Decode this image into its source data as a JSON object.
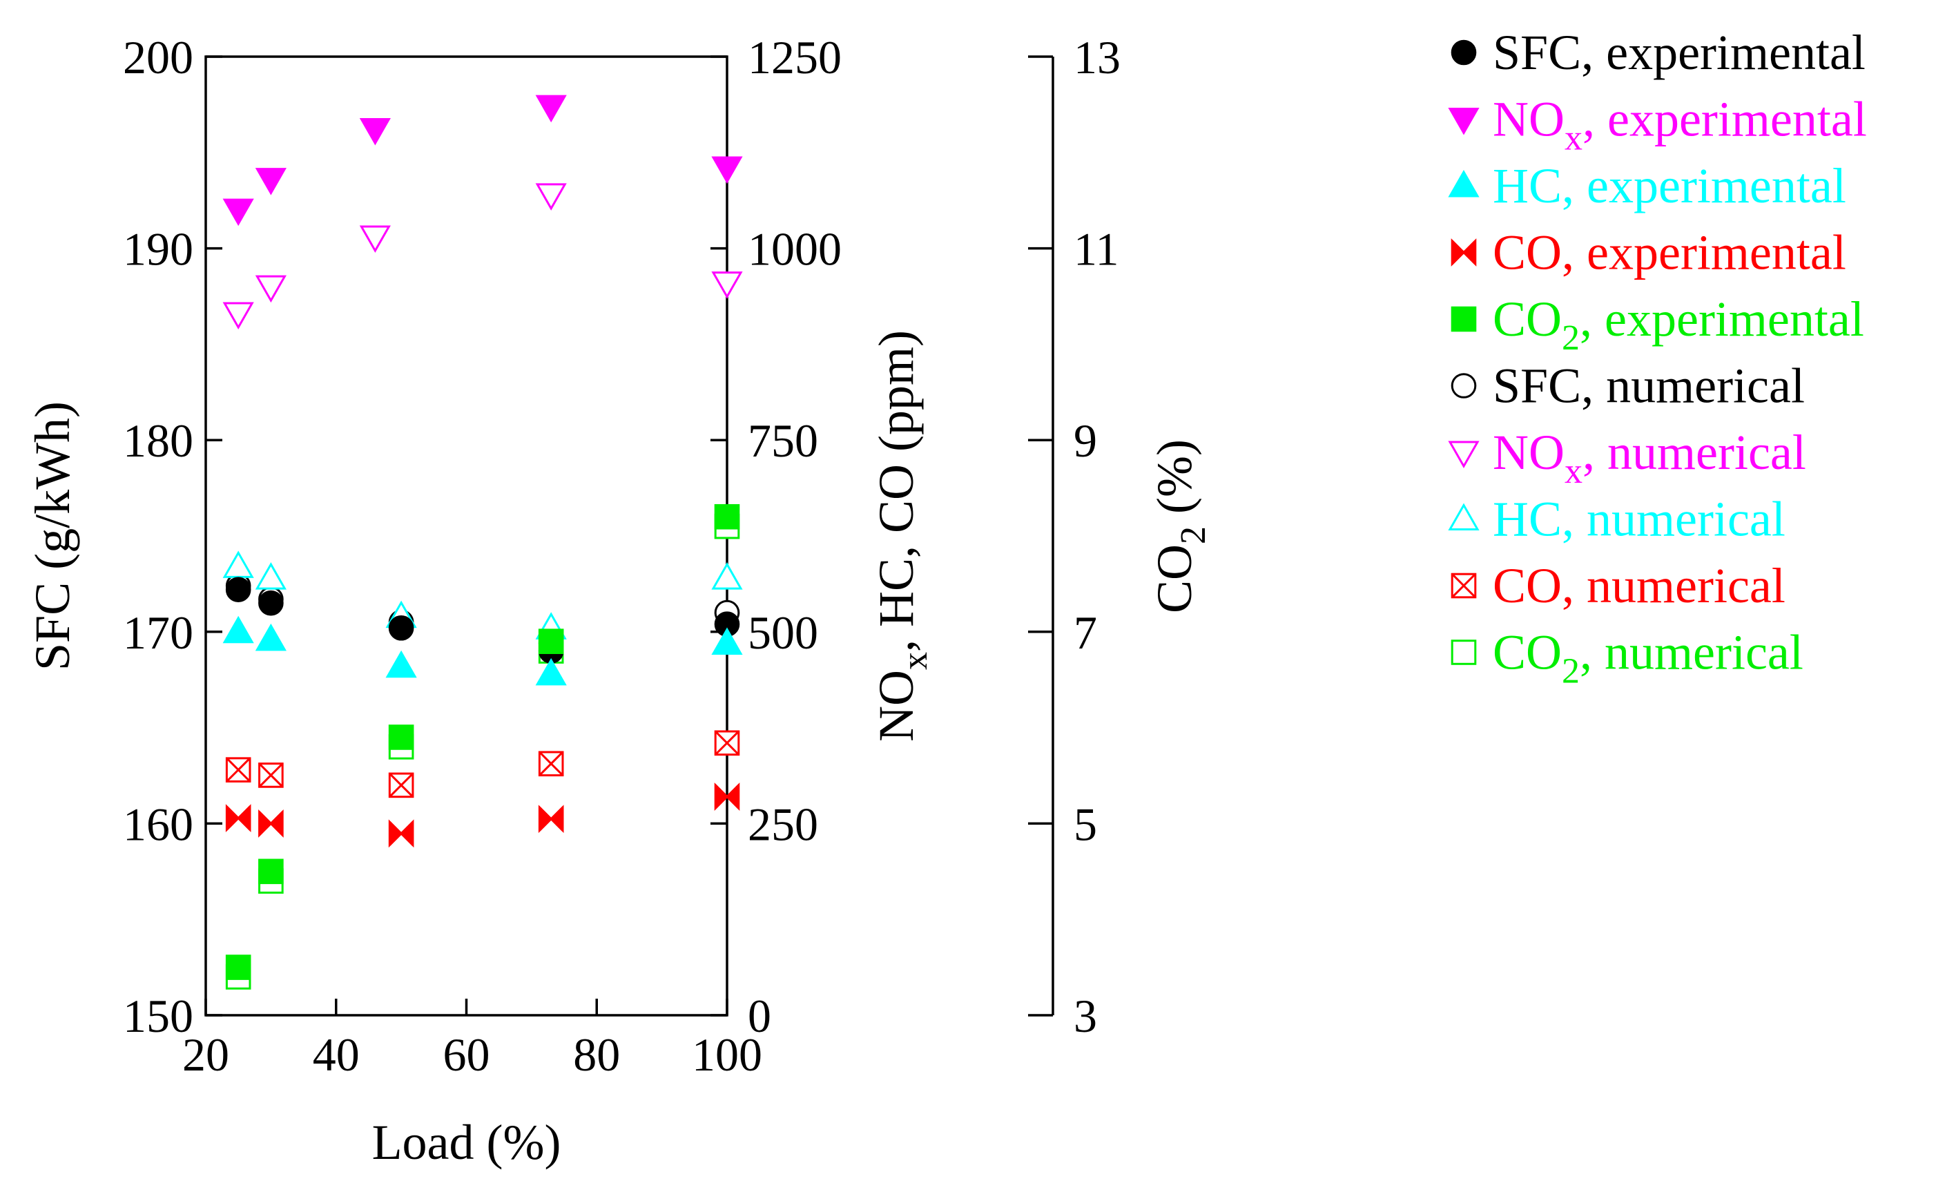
{
  "chart_data": {
    "type": "scatter",
    "x_axis": {
      "label": "Load (%)",
      "range": [
        20,
        100
      ],
      "ticks": [
        20,
        40,
        60,
        80,
        100
      ]
    },
    "y_axes": {
      "sfc": {
        "label_main": "SFC (g/kWh)",
        "range": [
          150,
          200
        ],
        "ticks": [
          150,
          160,
          170,
          180,
          190,
          200
        ]
      },
      "emissions": {
        "label_parts": [
          "NO",
          "x",
          ", HC, CO (ppm)"
        ],
        "range": [
          0,
          1250
        ],
        "ticks": [
          0,
          250,
          500,
          750,
          1000,
          1250
        ]
      },
      "co2": {
        "label_parts": [
          "CO",
          "2",
          " (%)"
        ],
        "range": [
          3,
          13
        ],
        "ticks": [
          3,
          5,
          7,
          9,
          11,
          13
        ]
      }
    },
    "series": [
      {
        "name": "SFC, experimental",
        "label_main": "SFC",
        "label_tail": ", experimental",
        "axis": "sfc",
        "marker": "circle",
        "filled": true,
        "color": "#000000",
        "x": [
          25,
          30,
          50,
          73,
          100
        ],
        "y": [
          172.2,
          171.5,
          170.2,
          169.0,
          170.4
        ]
      },
      {
        "name": "NOx, experimental",
        "label_main": "NO",
        "label_sub": "x",
        "label_tail": ", experimental",
        "axis": "emissions",
        "marker": "triangle-down",
        "filled": true,
        "color": "#ff00ff",
        "x": [
          25,
          30,
          46,
          73,
          100
        ],
        "y": [
          1050,
          1090,
          1155,
          1185,
          1105
        ]
      },
      {
        "name": "HC, experimental",
        "label_main": "HC",
        "label_tail": ", experimental",
        "axis": "emissions",
        "marker": "triangle-up",
        "filled": true,
        "color": "#00ffff",
        "x": [
          25,
          30,
          50,
          73,
          100
        ],
        "y": [
          500,
          490,
          455,
          445,
          485
        ]
      },
      {
        "name": "CO, experimental",
        "label_main": "CO",
        "label_tail": ", experimental",
        "axis": "emissions",
        "marker": "bowtie",
        "filled": true,
        "color": "#ff0000",
        "x": [
          25,
          30,
          50,
          73,
          100
        ],
        "y": [
          257,
          250,
          237,
          256,
          285
        ]
      },
      {
        "name": "CO2, experimental",
        "label_main": "CO",
        "label_sub": "2",
        "label_tail": ", experimental",
        "axis": "co2",
        "marker": "square",
        "filled": true,
        "color": "#00ee00",
        "x": [
          25,
          30,
          50,
          73,
          100
        ],
        "y": [
          3.5,
          4.5,
          5.9,
          6.9,
          8.2
        ]
      },
      {
        "name": "SFC, numerical",
        "label_main": "SFC",
        "label_tail": ", numerical",
        "axis": "sfc",
        "marker": "circle",
        "filled": false,
        "color": "#000000",
        "x": [
          25,
          30,
          50,
          73,
          100
        ],
        "y": [
          172.4,
          171.7,
          170.5,
          169.4,
          171.0
        ]
      },
      {
        "name": "NOx, numerical",
        "label_main": "NO",
        "label_sub": "x",
        "label_tail": ", numerical",
        "axis": "emissions",
        "marker": "triangle-down",
        "filled": false,
        "color": "#ff00ff",
        "x": [
          25,
          30,
          46,
          73,
          100
        ],
        "y": [
          915,
          950,
          1015,
          1070,
          955
        ]
      },
      {
        "name": "HC, numerical",
        "label_main": "HC",
        "label_tail": ", numerical",
        "axis": "emissions",
        "marker": "triangle-up",
        "filled": false,
        "color": "#00ffff",
        "x": [
          25,
          30,
          50,
          73,
          100
        ],
        "y": [
          585,
          570,
          520,
          505,
          570
        ]
      },
      {
        "name": "CO, numerical",
        "label_main": "CO",
        "label_tail": ", numerical",
        "axis": "emissions",
        "marker": "bowtie-v",
        "filled": false,
        "color": "#ff0000",
        "x": [
          25,
          30,
          50,
          73,
          100
        ],
        "y": [
          320,
          313,
          300,
          328,
          355
        ]
      },
      {
        "name": "CO2, numerical",
        "label_main": "CO",
        "label_sub": "2",
        "label_tail": ", numerical",
        "axis": "co2",
        "marker": "square",
        "filled": false,
        "color": "#00ee00",
        "x": [
          25,
          30,
          50,
          73,
          100
        ],
        "y": [
          3.4,
          4.4,
          5.8,
          6.8,
          8.1
        ]
      }
    ],
    "legend_position": "right"
  }
}
